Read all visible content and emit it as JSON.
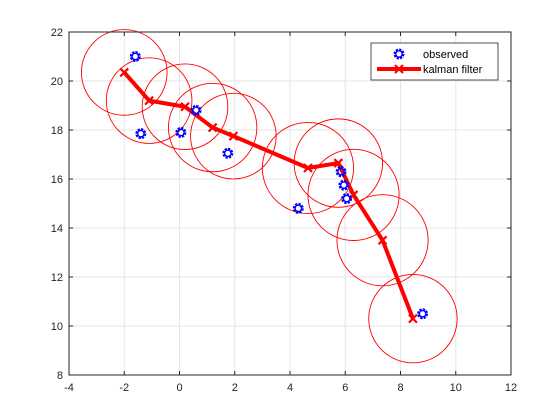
{
  "chart_data": {
    "type": "line",
    "xlim": [
      -4,
      12
    ],
    "ylim": [
      8,
      22
    ],
    "x_ticks": [
      -4,
      -2,
      0,
      2,
      4,
      6,
      8,
      10,
      12
    ],
    "y_ticks": [
      8,
      10,
      12,
      14,
      16,
      18,
      20,
      22
    ],
    "grid": true,
    "legend_position": "top-right",
    "series": [
      {
        "name": "observed",
        "style": "markers",
        "color": "#0000ff",
        "points": [
          {
            "x": -1.6,
            "y": 21.0
          },
          {
            "x": -1.4,
            "y": 17.85
          },
          {
            "x": 0.05,
            "y": 17.9
          },
          {
            "x": 0.6,
            "y": 18.8
          },
          {
            "x": 1.75,
            "y": 17.05
          },
          {
            "x": 4.3,
            "y": 14.8
          },
          {
            "x": 5.85,
            "y": 16.3
          },
          {
            "x": 5.95,
            "y": 15.75
          },
          {
            "x": 6.05,
            "y": 15.2
          },
          {
            "x": 8.8,
            "y": 10.5
          }
        ]
      },
      {
        "name": "kalman filter",
        "style": "line-with-x-markers",
        "color": "#ff0000",
        "points": [
          {
            "x": -2.0,
            "y": 20.35
          },
          {
            "x": -1.1,
            "y": 19.2
          },
          {
            "x": 0.2,
            "y": 18.95
          },
          {
            "x": 1.2,
            "y": 18.1
          },
          {
            "x": 1.95,
            "y": 17.75
          },
          {
            "x": 4.65,
            "y": 16.45
          },
          {
            "x": 5.75,
            "y": 16.65
          },
          {
            "x": 6.3,
            "y": 15.35
          },
          {
            "x": 7.35,
            "y": 13.5
          },
          {
            "x": 8.45,
            "y": 10.3
          }
        ]
      }
    ],
    "covariance_circles": {
      "color": "#ff0000",
      "radii_x": [
        1.55,
        1.55,
        1.55,
        1.6,
        1.55,
        1.65,
        1.6,
        1.65,
        1.65,
        1.6
      ]
    }
  }
}
